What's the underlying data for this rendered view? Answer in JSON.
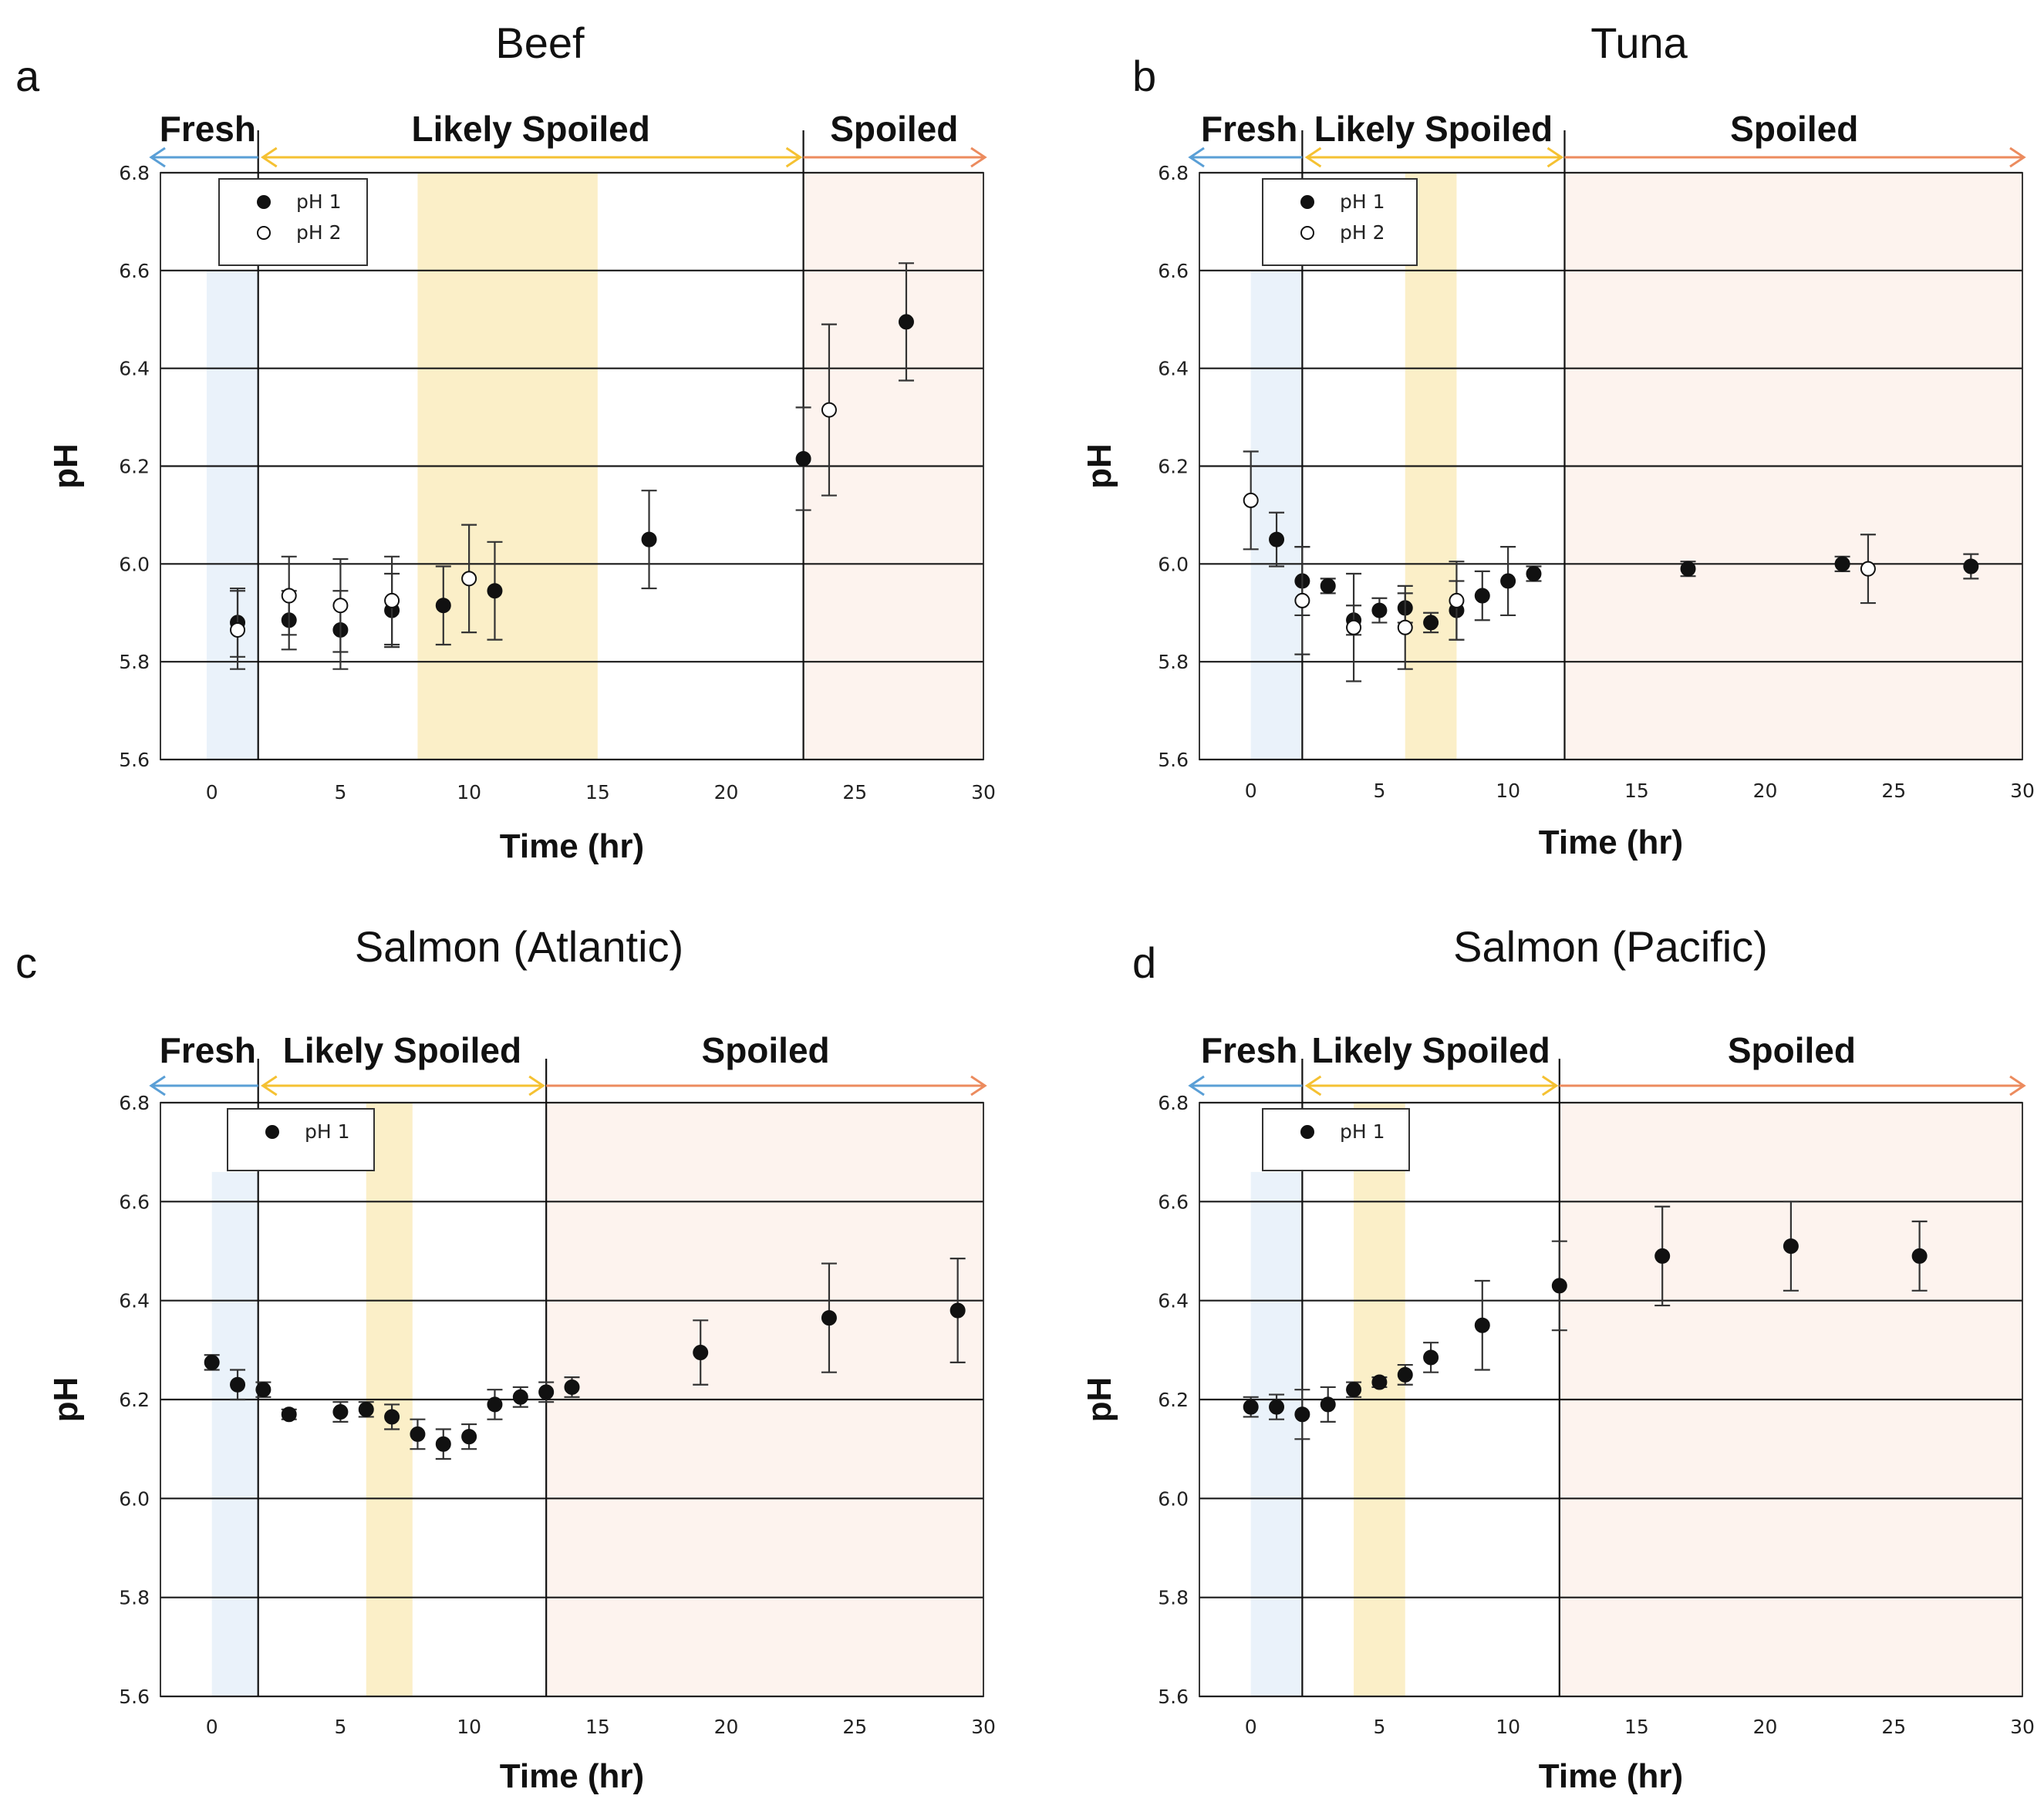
{
  "figure": {
    "background": "#ffffff"
  },
  "colors": {
    "fresh": "#5a9fd6",
    "likely": "#f5c132",
    "spoiled": "#ec8b5e",
    "fresh_fill": "#eaf2fa",
    "likely_fill": "#fbefc8",
    "spoiled_fill": "#fdf3ee",
    "marker": "#111111",
    "grid": "#1a1a1a"
  },
  "chart_data": [
    {
      "id": "a",
      "panel_letter": "a",
      "title": "Beef",
      "type": "scatter",
      "xlabel": "Time (hr)",
      "ylabel": "pH",
      "xlim": [
        -2,
        30
      ],
      "ylim": [
        5.6,
        6.8
      ],
      "xticks": [
        0,
        5,
        10,
        15,
        20,
        25,
        30
      ],
      "yticks": [
        5.6,
        5.8,
        6.0,
        6.2,
        6.4,
        6.6,
        6.8
      ],
      "ytick_labels": [
        "5.6",
        "5.8",
        "6.0",
        "6.2",
        "6.4",
        "6.6",
        "6.8"
      ],
      "legend": [
        "pH 1",
        "pH 2"
      ],
      "zone_labels": {
        "fresh": "Fresh",
        "likely": "Likely Spoiled",
        "spoiled": "Spoiled"
      },
      "zone_bounds": {
        "fresh_end": 1.8,
        "likely_end": 23.0
      },
      "shaded_fresh": [
        -0.2,
        1.8
      ],
      "shaded_likely": [
        8,
        15
      ],
      "shaded_spoiled": [
        23,
        30
      ],
      "fresh_band_top": 6.6,
      "series": [
        {
          "name": "pH 1",
          "filled": true,
          "points": [
            {
              "x": 1,
              "y": 5.88,
              "err": 0.07
            },
            {
              "x": 3,
              "y": 5.885,
              "err": 0.06
            },
            {
              "x": 5,
              "y": 5.865,
              "err": 0.08
            },
            {
              "x": 7,
              "y": 5.905,
              "err": 0.075
            },
            {
              "x": 9,
              "y": 5.915,
              "err": 0.08
            },
            {
              "x": 11,
              "y": 5.945,
              "err": 0.1
            },
            {
              "x": 17,
              "y": 6.05,
              "err": 0.1
            },
            {
              "x": 23,
              "y": 6.215,
              "err": 0.105
            },
            {
              "x": 27,
              "y": 6.495,
              "err": 0.12
            }
          ]
        },
        {
          "name": "pH 2",
          "filled": false,
          "points": [
            {
              "x": 1,
              "y": 5.865,
              "err": 0.08
            },
            {
              "x": 3,
              "y": 5.935,
              "err": 0.08
            },
            {
              "x": 5,
              "y": 5.915,
              "err": 0.095
            },
            {
              "x": 7,
              "y": 5.925,
              "err": 0.09
            },
            {
              "x": 10,
              "y": 5.97,
              "err": 0.11
            },
            {
              "x": 24,
              "y": 6.315,
              "err": 0.175
            }
          ]
        }
      ]
    },
    {
      "id": "b",
      "panel_letter": "b",
      "title": "Tuna",
      "type": "scatter",
      "xlabel": "Time (hr)",
      "ylabel": "pH",
      "xlim": [
        -2,
        30
      ],
      "ylim": [
        5.6,
        6.8
      ],
      "xticks": [
        0,
        5,
        10,
        15,
        20,
        25,
        30
      ],
      "yticks": [
        5.6,
        5.8,
        6.0,
        6.2,
        6.4,
        6.6,
        6.8
      ],
      "ytick_labels": [
        "5.6",
        "5.8",
        "6.0",
        "6.2",
        "6.4",
        "6.6",
        "6.8"
      ],
      "legend": [
        "pH 1",
        "pH 2"
      ],
      "zone_labels": {
        "fresh": "Fresh",
        "likely": "Likely Spoiled",
        "spoiled": "Spoiled"
      },
      "zone_bounds": {
        "fresh_end": 2.0,
        "likely_end": 12.2
      },
      "shaded_fresh": [
        0,
        2
      ],
      "shaded_likely": [
        6,
        8
      ],
      "shaded_spoiled": [
        12.2,
        30
      ],
      "fresh_band_top": 6.6,
      "series": [
        {
          "name": "pH 1",
          "filled": true,
          "points": [
            {
              "x": 1,
              "y": 6.05,
              "err": 0.055
            },
            {
              "x": 2,
              "y": 5.965,
              "err": 0.07
            },
            {
              "x": 3,
              "y": 5.955,
              "err": 0.015
            },
            {
              "x": 4,
              "y": 5.885,
              "err": 0.03
            },
            {
              "x": 5,
              "y": 5.905,
              "err": 0.025
            },
            {
              "x": 6,
              "y": 5.91,
              "err": 0.03
            },
            {
              "x": 7,
              "y": 5.88,
              "err": 0.02
            },
            {
              "x": 8,
              "y": 5.905,
              "err": 0.06
            },
            {
              "x": 9,
              "y": 5.935,
              "err": 0.05
            },
            {
              "x": 10,
              "y": 5.965,
              "err": 0.07
            },
            {
              "x": 11,
              "y": 5.98,
              "err": 0.015
            },
            {
              "x": 17,
              "y": 5.99,
              "err": 0.015
            },
            {
              "x": 23,
              "y": 6.0,
              "err": 0.015
            },
            {
              "x": 28,
              "y": 5.995,
              "err": 0.025
            }
          ]
        },
        {
          "name": "pH 2",
          "filled": false,
          "points": [
            {
              "x": 0,
              "y": 6.13,
              "err": 0.1
            },
            {
              "x": 2,
              "y": 5.925,
              "err": 0.11
            },
            {
              "x": 4,
              "y": 5.87,
              "err": 0.11
            },
            {
              "x": 6,
              "y": 5.87,
              "err": 0.085
            },
            {
              "x": 8,
              "y": 5.925,
              "err": 0.08
            },
            {
              "x": 24,
              "y": 5.99,
              "err": 0.07
            }
          ]
        }
      ]
    },
    {
      "id": "c",
      "panel_letter": "c",
      "title": "Salmon (Atlantic)",
      "type": "scatter",
      "xlabel": "Time (hr)",
      "ylabel": "pH",
      "xlim": [
        -2,
        30
      ],
      "ylim": [
        5.6,
        6.8
      ],
      "xticks": [
        0,
        5,
        10,
        15,
        20,
        25,
        30
      ],
      "yticks": [
        5.6,
        5.8,
        6.0,
        6.2,
        6.4,
        6.6,
        6.8
      ],
      "ytick_labels": [
        "5.6",
        "5.8",
        "6.0",
        "6.2",
        "6.4",
        "6.6",
        "6.8"
      ],
      "legend": [
        "pH 1"
      ],
      "zone_labels": {
        "fresh": "Fresh",
        "likely": "Likely Spoiled",
        "spoiled": "Spoiled"
      },
      "zone_bounds": {
        "fresh_end": 1.8,
        "likely_end": 13.0
      },
      "shaded_fresh": [
        0,
        1.8
      ],
      "shaded_likely": [
        6,
        7.8
      ],
      "shaded_spoiled": [
        13,
        30
      ],
      "fresh_band_top": 6.66,
      "series": [
        {
          "name": "pH 1",
          "filled": true,
          "points": [
            {
              "x": 0,
              "y": 6.275,
              "err": 0.015
            },
            {
              "x": 1,
              "y": 6.23,
              "err": 0.03
            },
            {
              "x": 2,
              "y": 6.22,
              "err": 0.015
            },
            {
              "x": 3,
              "y": 6.17,
              "err": 0.01
            },
            {
              "x": 5,
              "y": 6.175,
              "err": 0.02
            },
            {
              "x": 6,
              "y": 6.18,
              "err": 0.015
            },
            {
              "x": 7,
              "y": 6.165,
              "err": 0.025
            },
            {
              "x": 8,
              "y": 6.13,
              "err": 0.03
            },
            {
              "x": 9,
              "y": 6.11,
              "err": 0.03
            },
            {
              "x": 10,
              "y": 6.125,
              "err": 0.025
            },
            {
              "x": 11,
              "y": 6.19,
              "err": 0.03
            },
            {
              "x": 12,
              "y": 6.205,
              "err": 0.02
            },
            {
              "x": 13,
              "y": 6.215,
              "err": 0.02
            },
            {
              "x": 14,
              "y": 6.225,
              "err": 0.02
            },
            {
              "x": 19,
              "y": 6.295,
              "err": 0.065
            },
            {
              "x": 24,
              "y": 6.365,
              "err": 0.11
            },
            {
              "x": 29,
              "y": 6.38,
              "err": 0.105
            }
          ]
        }
      ]
    },
    {
      "id": "d",
      "panel_letter": "d",
      "title": "Salmon (Pacific)",
      "type": "scatter",
      "xlabel": "Time (hr)",
      "ylabel": "pH",
      "xlim": [
        -2,
        30
      ],
      "ylim": [
        5.6,
        6.8
      ],
      "xticks": [
        0,
        5,
        10,
        15,
        20,
        25,
        30
      ],
      "yticks": [
        5.6,
        5.8,
        6.0,
        6.2,
        6.4,
        6.6,
        6.8
      ],
      "ytick_labels": [
        "5.6",
        "5.8",
        "6.0",
        "6.2",
        "6.4",
        "6.6",
        "6.8"
      ],
      "legend": [
        "pH 1"
      ],
      "zone_labels": {
        "fresh": "Fresh",
        "likely": "Likely Spoiled",
        "spoiled": "Spoiled"
      },
      "zone_bounds": {
        "fresh_end": 2.0,
        "likely_end": 12.0
      },
      "shaded_fresh": [
        0,
        2
      ],
      "shaded_likely": [
        4,
        6
      ],
      "shaded_spoiled": [
        12,
        30
      ],
      "fresh_band_top": 6.66,
      "series": [
        {
          "name": "pH 1",
          "filled": true,
          "points": [
            {
              "x": 0,
              "y": 6.185,
              "err": 0.02
            },
            {
              "x": 1,
              "y": 6.185,
              "err": 0.025
            },
            {
              "x": 2,
              "y": 6.17,
              "err": 0.05
            },
            {
              "x": 3,
              "y": 6.19,
              "err": 0.035
            },
            {
              "x": 4,
              "y": 6.22,
              "err": 0.015
            },
            {
              "x": 5,
              "y": 6.235,
              "err": 0.01
            },
            {
              "x": 6,
              "y": 6.25,
              "err": 0.02
            },
            {
              "x": 7,
              "y": 6.285,
              "err": 0.03
            },
            {
              "x": 9,
              "y": 6.35,
              "err": 0.09
            },
            {
              "x": 12,
              "y": 6.43,
              "err": 0.09
            },
            {
              "x": 16,
              "y": 6.49,
              "err": 0.1
            },
            {
              "x": 21,
              "y": 6.51,
              "err": 0.09
            },
            {
              "x": 26,
              "y": 6.49,
              "err": 0.07
            }
          ]
        }
      ]
    }
  ]
}
